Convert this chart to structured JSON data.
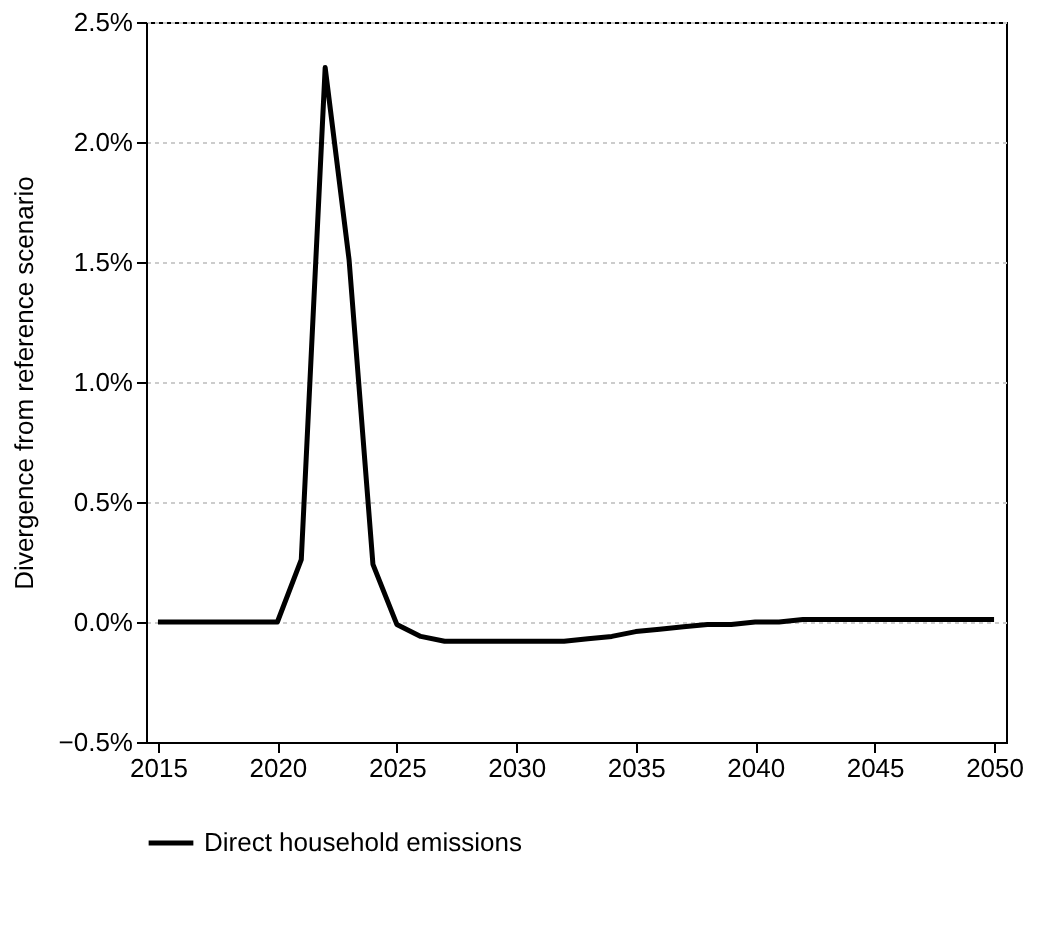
{
  "chart_data": {
    "type": "line",
    "ylabel": "Divergence from reference scenario",
    "x": [
      2015,
      2016,
      2017,
      2018,
      2019,
      2020,
      2021,
      2022,
      2023,
      2024,
      2025,
      2026,
      2027,
      2028,
      2029,
      2030,
      2031,
      2032,
      2033,
      2034,
      2035,
      2036,
      2037,
      2038,
      2039,
      2040,
      2041,
      2042,
      2043,
      2044,
      2045,
      2046,
      2047,
      2048,
      2049,
      2050
    ],
    "series": [
      {
        "name": "Direct household emissions",
        "color": "#000000",
        "values": [
          0,
          0,
          0,
          0,
          0,
          0,
          0.26,
          2.31,
          1.51,
          0.24,
          -0.01,
          -0.06,
          -0.08,
          -0.08,
          -0.08,
          -0.08,
          -0.08,
          -0.08,
          -0.07,
          -0.06,
          -0.04,
          -0.03,
          -0.02,
          -0.01,
          -0.01,
          0,
          0,
          0.01,
          0.01,
          0.01,
          0.01,
          0.01,
          0.01,
          0.01,
          0.01,
          0.01
        ]
      }
    ],
    "xlim": [
      2014.5,
      2050.5
    ],
    "xticks": [
      2015,
      2020,
      2025,
      2030,
      2035,
      2040,
      2045,
      2050
    ],
    "ylim": [
      -0.5,
      2.5
    ],
    "yticks": [
      {
        "value": -0.5,
        "label": "−0.5%"
      },
      {
        "value": 0,
        "label": "0.0%"
      },
      {
        "value": 0.5,
        "label": "0.5%"
      },
      {
        "value": 1,
        "label": "1.0%"
      },
      {
        "value": 1.5,
        "label": "1.5%"
      },
      {
        "value": 2,
        "label": "2.0%"
      },
      {
        "value": 2.5,
        "label": "2.5%"
      }
    ],
    "grid": "y",
    "legend": "bottom",
    "marker": "none",
    "line_style": "solid"
  }
}
